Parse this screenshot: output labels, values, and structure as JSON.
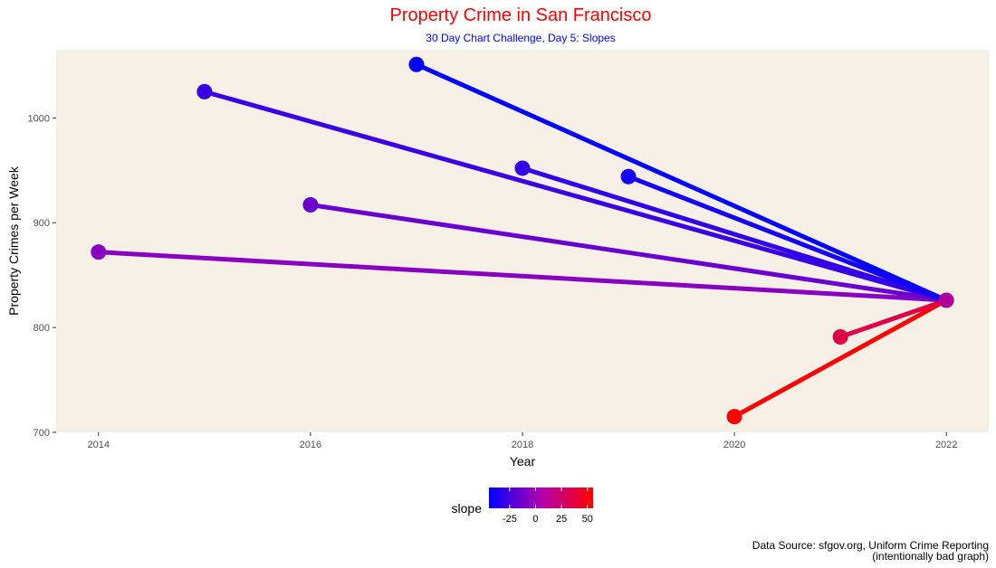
{
  "title": "Property Crime in San Francisco",
  "subtitle": "30 Day Chart Challenge, Day 5: Slopes",
  "caption_line1": "Data Source: sfgov.org, Uniform Crime Reporting",
  "caption_line2": "(intentionally bad graph)",
  "colors": {
    "title": "#ff0000",
    "subtitle": "#0000ff",
    "panel_bg": "#f5efe6",
    "low": "#0000ff",
    "high": "#ff0000"
  },
  "chart_data": {
    "type": "line",
    "title": "Property Crime in San Francisco",
    "subtitle": "30 Day Chart Challenge, Day 5: Slopes",
    "xlabel": "Year",
    "ylabel": "Property Crimes per Week",
    "xlim": [
      2013.6,
      2022.4
    ],
    "ylim": [
      700,
      1065
    ],
    "x_ticks": [
      2014,
      2016,
      2018,
      2020,
      2022
    ],
    "y_ticks": [
      700,
      800,
      900,
      1000
    ],
    "grid": false,
    "end_point": {
      "x": 2022,
      "y": 826
    },
    "start_points": [
      {
        "x": 2014,
        "y": 872
      },
      {
        "x": 2015,
        "y": 1025
      },
      {
        "x": 2016,
        "y": 917
      },
      {
        "x": 2017,
        "y": 1051
      },
      {
        "x": 2018,
        "y": 952
      },
      {
        "x": 2019,
        "y": 944
      },
      {
        "x": 2020,
        "y": 715
      },
      {
        "x": 2021,
        "y": 791
      }
    ],
    "legend": {
      "title": "slope",
      "position": "bottom",
      "range": [
        -45,
        55.5
      ],
      "ticks": [
        "-25",
        "0",
        "25",
        "50"
      ]
    }
  }
}
